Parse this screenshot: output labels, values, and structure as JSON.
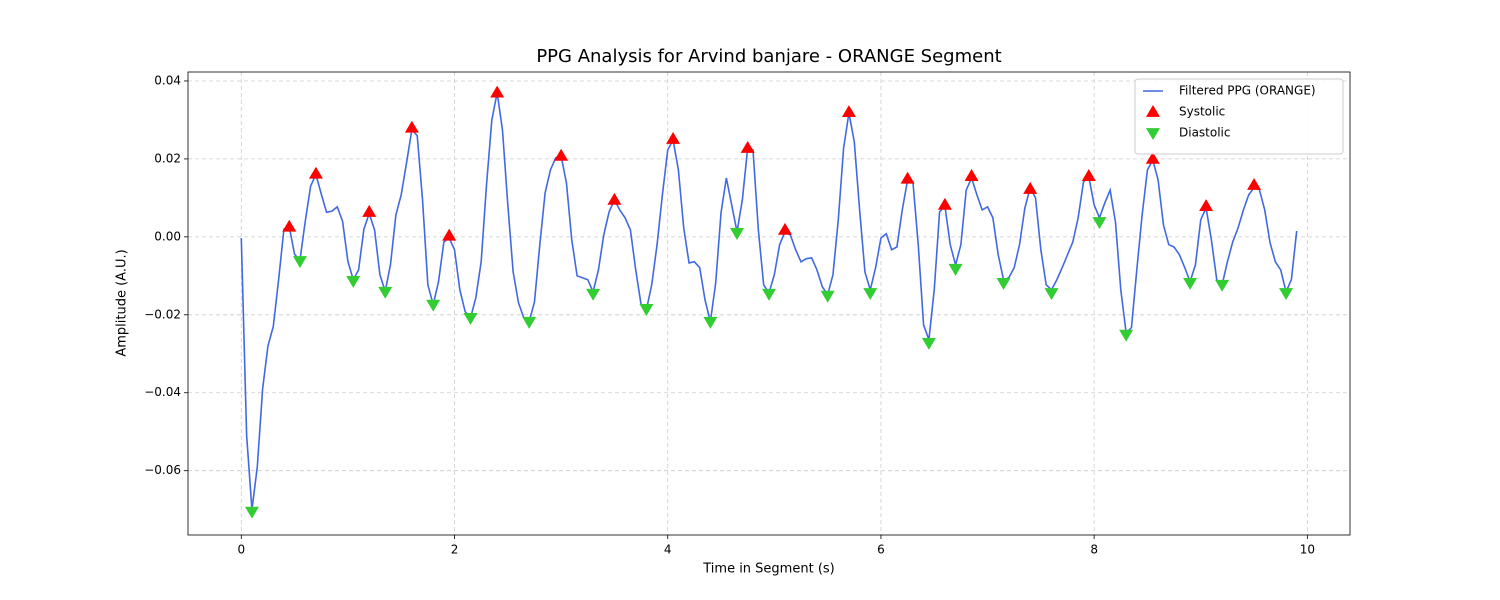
{
  "chart_data": {
    "type": "line",
    "title": "PPG Analysis for Arvind banjare - ORANGE Segment",
    "x_label": "Time in Segment (s)",
    "y_label": "Amplitude (A.U.)",
    "xlim": [
      -0.5,
      10.4
    ],
    "ylim": [
      -0.0765,
      0.0423
    ],
    "xticks": [
      0,
      2,
      4,
      6,
      8,
      10
    ],
    "yticks": [
      {
        "value": -0.06,
        "label": "−0.06"
      },
      {
        "value": -0.04,
        "label": "−0.04"
      },
      {
        "value": -0.02,
        "label": "−0.02"
      },
      {
        "value": 0,
        "label": "0.00"
      },
      0.02,
      0.04
    ],
    "grid": true,
    "legend": "upper right",
    "series": [
      {
        "name": "Filtered PPG (ORANGE)",
        "type": "line",
        "color": "#4169e1",
        "x": [
          0,
          0.05,
          0.1,
          0.15,
          0.2,
          0.25,
          0.3,
          0.35,
          0.4,
          0.45,
          0.5,
          0.55,
          0.6,
          0.65,
          0.7,
          0.75,
          0.8,
          0.85,
          0.9,
          0.95,
          1.0,
          1.05,
          1.1,
          1.15,
          1.2,
          1.25,
          1.3,
          1.35,
          1.4,
          1.45,
          1.5,
          1.55,
          1.6,
          1.65,
          1.7,
          1.75,
          1.8,
          1.85,
          1.9,
          1.95,
          2.0,
          2.05,
          2.1,
          2.15,
          2.2,
          2.25,
          2.3,
          2.35,
          2.4,
          2.45,
          2.5,
          2.55,
          2.6,
          2.65,
          2.7,
          2.75,
          2.8,
          2.85,
          2.9,
          2.95,
          3.0,
          3.05,
          3.1,
          3.15,
          3.2,
          3.25,
          3.3,
          3.35,
          3.4,
          3.45,
          3.5,
          3.55,
          3.6,
          3.65,
          3.7,
          3.75,
          3.8,
          3.85,
          3.9,
          3.95,
          4.0,
          4.05,
          4.1,
          4.15,
          4.2,
          4.25,
          4.3,
          4.35,
          4.4,
          4.45,
          4.5,
          4.55,
          4.6,
          4.65,
          4.7,
          4.75,
          4.8,
          4.85,
          4.9,
          4.95,
          5.0,
          5.05,
          5.1,
          5.15,
          5.2,
          5.25,
          5.3,
          5.35,
          5.4,
          5.45,
          5.5,
          5.55,
          5.6,
          5.65,
          5.7,
          5.75,
          5.8,
          5.85,
          5.9,
          5.95,
          6.0,
          6.05,
          6.1,
          6.15,
          6.2,
          6.25,
          6.3,
          6.35,
          6.4,
          6.45,
          6.5,
          6.55,
          6.6,
          6.65,
          6.7,
          6.75,
          6.8,
          6.85,
          6.9,
          6.95,
          7.0,
          7.05,
          7.1,
          7.15,
          7.2,
          7.25,
          7.3,
          7.35,
          7.4,
          7.45,
          7.5,
          7.55,
          7.6,
          7.65,
          7.7,
          7.75,
          7.8,
          7.85,
          7.9,
          7.95,
          8.0,
          8.05,
          8.1,
          8.15,
          8.2,
          8.25,
          8.3,
          8.35,
          8.4,
          8.45,
          8.5,
          8.55,
          8.6,
          8.65,
          8.7,
          8.75,
          8.8,
          8.85,
          8.9,
          8.95,
          9.0,
          9.05,
          9.1,
          9.15,
          9.2,
          9.25,
          9.3,
          9.35,
          9.4,
          9.45,
          9.5,
          9.55,
          9.6,
          9.65,
          9.7,
          9.75,
          9.8,
          9.85,
          9.9
        ],
        "values": [
          -0.0003,
          -0.051,
          -0.07,
          -0.059,
          -0.039,
          -0.028,
          -0.023,
          -0.011,
          0.002,
          0.0025,
          -0.0045,
          -0.006,
          0.004,
          0.013,
          0.016,
          0.011,
          0.0063,
          0.0066,
          0.0077,
          0.004,
          -0.0063,
          -0.011,
          -0.0085,
          0.002,
          0.006,
          0.0018,
          -0.0097,
          -0.014,
          -0.007,
          0.0056,
          0.0108,
          0.019,
          0.0275,
          0.026,
          0.0095,
          -0.0123,
          -0.0174,
          -0.0115,
          -0.0013,
          -0.0003,
          -0.0033,
          -0.0136,
          -0.0192,
          -0.0208,
          -0.0156,
          -0.0064,
          0.0133,
          0.03,
          0.037,
          0.0274,
          0.0082,
          -0.009,
          -0.0169,
          -0.0208,
          -0.0218,
          -0.0167,
          -0.002,
          0.0113,
          0.0172,
          0.0203,
          0.0208,
          0.0138,
          -0.0008,
          -0.01,
          -0.0105,
          -0.011,
          -0.0141,
          -0.0085,
          0.0005,
          0.0064,
          0.0095,
          0.0069,
          0.0049,
          0.0018,
          -0.0085,
          -0.0174,
          -0.0187,
          -0.0123,
          -0.002,
          0.0108,
          0.0223,
          0.0249,
          0.0172,
          0.0023,
          -0.0067,
          -0.0064,
          -0.0079,
          -0.0162,
          -0.0218,
          -0.0118,
          0.0062,
          0.0151,
          0.0082,
          0.0013,
          0.0095,
          0.0228,
          0.0223,
          0.0018,
          -0.0123,
          -0.0144,
          -0.0097,
          -0.002,
          0.0013,
          0.0005,
          -0.0033,
          -0.0064,
          -0.0056,
          -0.0054,
          -0.0085,
          -0.0128,
          -0.0149,
          -0.0097,
          0.0044,
          0.0228,
          0.0318,
          0.0244,
          0.0069,
          -0.009,
          -0.0136,
          -0.0079,
          -0.0003,
          0.0008,
          -0.0033,
          -0.0026,
          0.0069,
          0.0146,
          0.0141,
          -0.002,
          -0.0226,
          -0.0264,
          -0.0136,
          0.0064,
          0.0079,
          -0.002,
          -0.0072,
          -0.002,
          0.012,
          0.0151,
          0.0108,
          0.0069,
          0.0077,
          0.0049,
          -0.0046,
          -0.011,
          -0.0105,
          -0.0079,
          -0.002,
          0.0074,
          0.0126,
          0.01,
          -0.0033,
          -0.0123,
          -0.0136,
          -0.011,
          -0.0079,
          -0.0046,
          -0.0013,
          0.0049,
          0.0141,
          0.0154,
          0.0082,
          0.0049,
          0.0087,
          0.012,
          0.0038,
          -0.0136,
          -0.0246,
          -0.0233,
          -0.0085,
          0.0056,
          0.0172,
          0.0197,
          0.0146,
          0.0031,
          -0.002,
          -0.0026,
          -0.0046,
          -0.0079,
          -0.0115,
          -0.0072,
          0.0044,
          0.0074,
          -0.0008,
          -0.011,
          -0.0123,
          -0.0064,
          -0.0013,
          0.0023,
          0.0069,
          0.0108,
          0.0126,
          0.0121,
          0.0069,
          -0.0015,
          -0.0064,
          -0.0085,
          -0.0141,
          -0.011,
          0.0015
        ]
      },
      {
        "name": "Systolic",
        "type": "scatter",
        "marker": "triangle-up",
        "color": "#ff0000",
        "x": [
          0.45,
          0.7,
          1.2,
          1.6,
          1.95,
          2.4,
          3.0,
          3.5,
          4.05,
          4.75,
          5.1,
          5.7,
          6.25,
          6.6,
          6.85,
          7.4,
          7.95,
          8.55,
          9.05,
          9.5
        ],
        "values": [
          0.0026,
          0.0162,
          0.0064,
          0.028,
          0.0003,
          0.037,
          0.0208,
          0.0095,
          0.0251,
          0.0228,
          0.0018,
          0.032,
          0.0149,
          0.0082,
          0.0156,
          0.0123,
          0.0156,
          0.02,
          0.0079,
          0.0133
        ]
      },
      {
        "name": "Diastolic",
        "type": "scatter",
        "marker": "triangle-down",
        "color": "#32cd32",
        "x": [
          0.1,
          0.55,
          1.05,
          1.35,
          1.8,
          2.15,
          2.7,
          3.3,
          3.8,
          4.4,
          4.65,
          4.95,
          5.5,
          5.9,
          6.45,
          6.7,
          7.15,
          7.6,
          8.05,
          8.3,
          8.9,
          9.2,
          9.8
        ],
        "values": [
          -0.0705,
          -0.0062,
          -0.0113,
          -0.0141,
          -0.0174,
          -0.0208,
          -0.0218,
          -0.0146,
          -0.0185,
          -0.0218,
          0.001,
          -0.0146,
          -0.0151,
          -0.0144,
          -0.0272,
          -0.0082,
          -0.0118,
          -0.0144,
          0.0038,
          -0.0251,
          -0.0118,
          -0.0123,
          -0.0144
        ]
      }
    ]
  }
}
